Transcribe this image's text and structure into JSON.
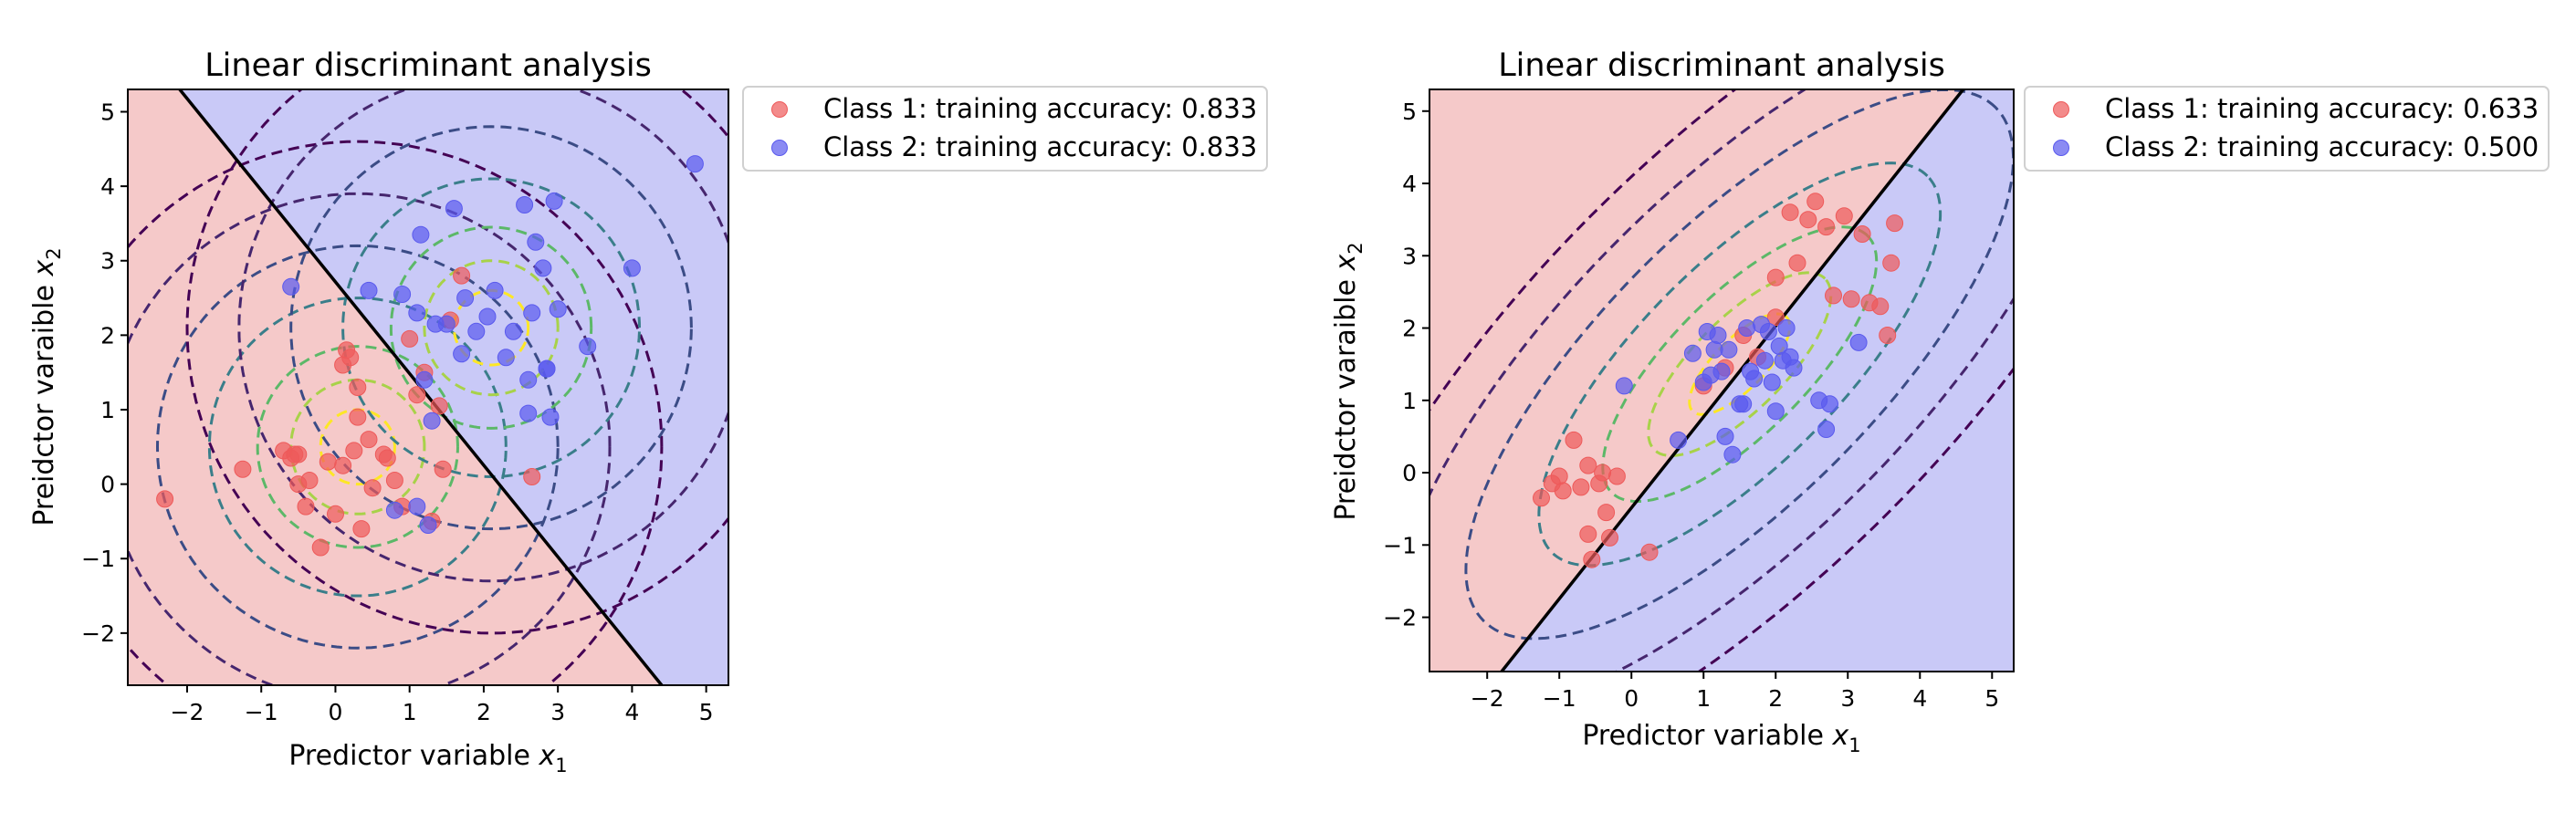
{
  "colors": {
    "class1_region": "#f5c9c9",
    "class2_region": "#c9c9f7",
    "class1_point": "#ee5a5a",
    "class2_point": "#5a5aee",
    "boundary": "#000000",
    "contour_levels": [
      "#fde725",
      "#a8d249",
      "#5cb868",
      "#3a7e8a",
      "#3b4c86",
      "#46266e",
      "#440154"
    ]
  },
  "chart_data": [
    {
      "type": "scatter",
      "title": "Linear discriminant analysis",
      "xlabel": "Predictor variable",
      "xlabel_var": "x",
      "xlabel_sub": "1",
      "ylabel": "Preidctor varaible",
      "ylabel_var": "x",
      "ylabel_sub": "2",
      "xlim": [
        -2.8,
        5.3
      ],
      "ylim": [
        -2.7,
        5.3
      ],
      "xticks": [
        -2,
        -1,
        0,
        1,
        2,
        3,
        4,
        5
      ],
      "yticks": [
        -2,
        -1,
        0,
        1,
        2,
        3,
        4,
        5
      ],
      "legend_position": "outside-upper-right",
      "legend": [
        "Class 1: training accuracy: 0.833",
        "Class 2: training accuracy: 0.833"
      ],
      "decision_boundary": {
        "x1": [
          -2.1,
          4.4
        ],
        "x2": [
          5.3,
          -2.7
        ]
      },
      "distributions": [
        {
          "mean": [
            0.3,
            0.5
          ],
          "cov": [
            [
              1.0,
              0.0
            ],
            [
              0.0,
              1.0
            ]
          ]
        },
        {
          "mean": [
            2.1,
            2.1
          ],
          "cov": [
            [
              1.0,
              0.0
            ],
            [
              0.0,
              1.0
            ]
          ]
        }
      ],
      "contour_radii": [
        0.5,
        0.9,
        1.35,
        2.0,
        2.7,
        3.4,
        4.1
      ],
      "series": [
        {
          "name": "Class 1",
          "x": [
            -2.3,
            -1.25,
            -0.7,
            -0.6,
            -0.5,
            -0.55,
            -0.35,
            -0.4,
            -0.2,
            -0.1,
            0.1,
            0.0,
            0.2,
            0.15,
            0.3,
            0.25,
            0.35,
            0.5,
            0.3,
            0.1,
            0.45,
            0.65,
            0.8,
            0.9,
            1.0,
            1.1,
            1.2,
            1.3,
            1.45,
            1.55,
            1.7,
            1.4,
            2.65,
            0.7,
            -0.5
          ],
          "y": [
            -0.2,
            0.2,
            0.45,
            0.35,
            0.0,
            0.4,
            0.05,
            -0.3,
            -0.85,
            0.3,
            1.6,
            -0.4,
            1.7,
            1.8,
            1.3,
            0.45,
            -0.6,
            -0.05,
            0.9,
            0.25,
            0.6,
            0.4,
            0.05,
            -0.3,
            1.95,
            1.2,
            1.5,
            -0.5,
            0.2,
            2.2,
            2.8,
            1.05,
            0.1,
            0.35,
            0.4
          ]
        },
        {
          "name": "Class 2",
          "x": [
            -0.6,
            0.45,
            0.8,
            0.9,
            1.1,
            1.15,
            1.2,
            1.3,
            1.5,
            1.6,
            1.7,
            1.75,
            1.9,
            2.05,
            2.15,
            2.3,
            2.4,
            2.55,
            2.6,
            2.65,
            2.7,
            2.8,
            2.85,
            2.9,
            2.95,
            3.0,
            3.4,
            4.0,
            4.85,
            1.25,
            1.1,
            2.6,
            2.85,
            1.35
          ],
          "y": [
            2.65,
            2.6,
            -0.35,
            2.55,
            2.3,
            3.35,
            1.4,
            0.85,
            2.15,
            3.7,
            1.75,
            2.5,
            2.05,
            2.25,
            2.6,
            1.7,
            2.05,
            3.75,
            1.4,
            2.3,
            3.25,
            2.9,
            1.55,
            0.9,
            3.8,
            2.35,
            1.85,
            2.9,
            4.3,
            -0.55,
            -0.3,
            0.95,
            1.55,
            2.15
          ]
        }
      ]
    },
    {
      "type": "scatter",
      "title": "Linear discriminant analysis",
      "xlabel": "Predictor variable",
      "xlabel_var": "x",
      "xlabel_sub": "1",
      "ylabel": "Preidctor varaible",
      "ylabel_var": "x",
      "ylabel_sub": "2",
      "xlim": [
        -2.8,
        5.3
      ],
      "ylim": [
        -2.75,
        5.3
      ],
      "xticks": [
        -2,
        -1,
        0,
        1,
        2,
        3,
        4,
        5
      ],
      "yticks": [
        -2,
        -1,
        0,
        1,
        2,
        3,
        4,
        5
      ],
      "legend_position": "outside-upper-right",
      "legend": [
        "Class 1: training accuracy: 0.633",
        "Class 2: training accuracy: 0.500"
      ],
      "decision_boundary": {
        "x1": [
          -1.8,
          4.6
        ],
        "x2": [
          -2.75,
          5.3
        ]
      },
      "distributions": [
        {
          "mean": [
            1.5,
            1.5
          ],
          "cov": [
            [
              1.6,
              1.2
            ],
            [
              1.2,
              1.6
            ]
          ]
        }
      ],
      "contour_radii": [
        0.55,
        1.0,
        1.5,
        2.2,
        3.0,
        3.8,
        4.6
      ],
      "series": [
        {
          "name": "Class 1",
          "x": [
            -1.25,
            -1.1,
            -1.0,
            -0.95,
            -0.8,
            -0.7,
            -0.6,
            -0.55,
            -0.45,
            -0.35,
            -0.3,
            -0.2,
            -0.6,
            -0.4,
            0.25,
            1.0,
            1.3,
            1.55,
            1.75,
            2.0,
            2.2,
            2.3,
            2.45,
            2.55,
            2.7,
            2.8,
            2.95,
            3.05,
            3.2,
            3.3,
            3.45,
            3.55,
            3.6,
            3.65,
            2.0
          ],
          "y": [
            -0.35,
            -0.15,
            -0.05,
            -0.25,
            0.45,
            -0.2,
            -0.85,
            -1.2,
            -0.15,
            -0.55,
            -0.9,
            -0.05,
            0.1,
            0.0,
            -1.1,
            1.2,
            1.45,
            1.9,
            1.6,
            2.7,
            3.6,
            2.9,
            3.5,
            3.75,
            3.4,
            2.45,
            3.55,
            2.4,
            3.3,
            2.35,
            2.3,
            1.9,
            2.9,
            3.45,
            2.15
          ]
        },
        {
          "name": "Class 2",
          "x": [
            -0.1,
            0.65,
            0.85,
            1.0,
            1.05,
            1.1,
            1.15,
            1.2,
            1.3,
            1.35,
            1.4,
            1.5,
            1.6,
            1.65,
            1.7,
            1.8,
            1.85,
            1.9,
            2.0,
            2.05,
            2.1,
            2.15,
            2.2,
            2.25,
            2.6,
            2.7,
            2.75,
            3.15,
            1.55,
            1.25,
            1.95
          ],
          "y": [
            1.2,
            0.45,
            1.65,
            1.25,
            1.95,
            1.35,
            1.7,
            1.9,
            0.5,
            1.7,
            0.25,
            0.95,
            2.0,
            1.4,
            1.3,
            2.05,
            1.55,
            1.95,
            0.85,
            1.75,
            1.55,
            2.0,
            1.6,
            1.45,
            1.0,
            0.6,
            0.95,
            1.8,
            0.95,
            1.4,
            1.25
          ]
        }
      ]
    }
  ]
}
